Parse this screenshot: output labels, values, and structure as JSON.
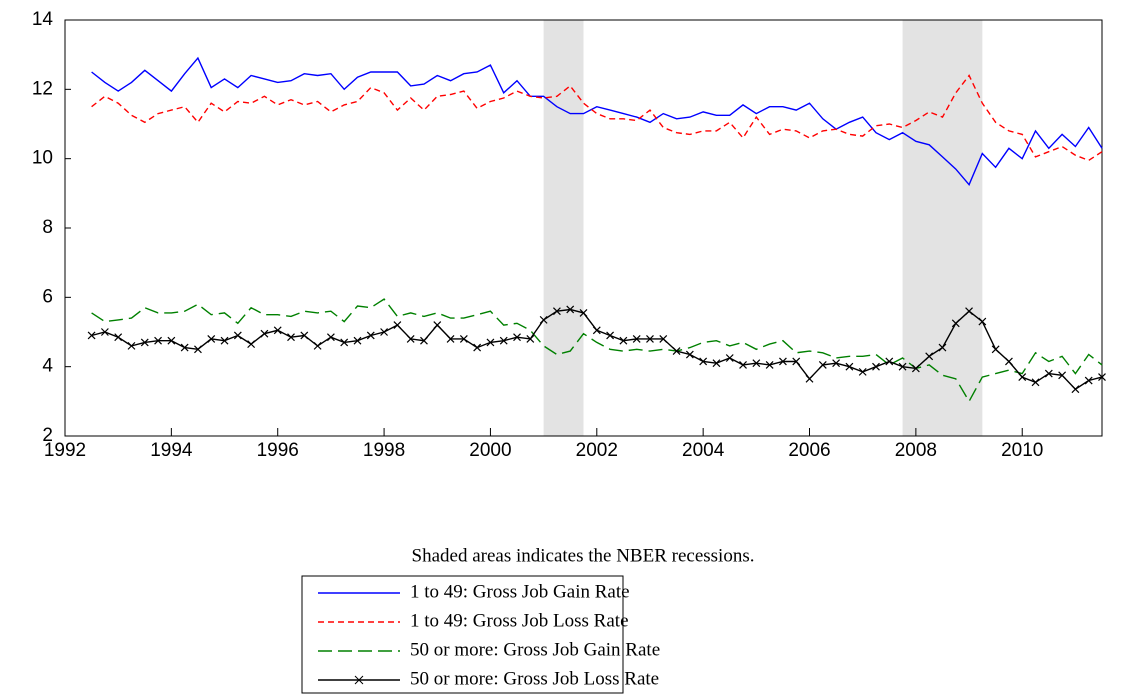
{
  "chart_data": {
    "type": "line",
    "note": "Shaded areas indicates the NBER recessions.",
    "x": [
      1992.5,
      1992.75,
      1993,
      1993.25,
      1993.5,
      1993.75,
      1994,
      1994.25,
      1994.5,
      1994.75,
      1995,
      1995.25,
      1995.5,
      1995.75,
      1996,
      1996.25,
      1996.5,
      1996.75,
      1997,
      1997.25,
      1997.5,
      1997.75,
      1998,
      1998.25,
      1998.5,
      1998.75,
      1999,
      1999.25,
      1999.5,
      1999.75,
      2000,
      2000.25,
      2000.5,
      2000.75,
      2001,
      2001.25,
      2001.5,
      2001.75,
      2002,
      2002.25,
      2002.5,
      2002.75,
      2003,
      2003.25,
      2003.5,
      2003.75,
      2004,
      2004.25,
      2004.5,
      2004.75,
      2005,
      2005.25,
      2005.5,
      2005.75,
      2006,
      2006.25,
      2006.5,
      2006.75,
      2007,
      2007.25,
      2007.5,
      2007.75,
      2008,
      2008.25,
      2008.5,
      2008.75,
      2009,
      2009.25,
      2009.5,
      2009.75,
      2010,
      2010.25,
      2010.5,
      2010.75,
      2011,
      2011.25,
      2011.5
    ],
    "series": [
      {
        "name": "1 to 49: Gross Job Gain Rate",
        "color": "#0000ff",
        "dash": "none",
        "values": [
          12.5,
          12.2,
          11.95,
          12.2,
          12.55,
          12.25,
          11.95,
          12.45,
          12.9,
          12.05,
          12.3,
          12.05,
          12.4,
          12.3,
          12.2,
          12.25,
          12.45,
          12.4,
          12.45,
          12.0,
          12.35,
          12.5,
          12.5,
          12.5,
          12.1,
          12.15,
          12.4,
          12.25,
          12.45,
          12.5,
          12.7,
          11.9,
          12.25,
          11.8,
          11.8,
          11.5,
          11.3,
          11.3,
          11.5,
          11.4,
          11.3,
          11.2,
          11.05,
          11.3,
          11.15,
          11.2,
          11.35,
          11.25,
          11.25,
          11.55,
          11.3,
          11.5,
          11.5,
          11.4,
          11.6,
          11.15,
          10.85,
          11.05,
          11.2,
          10.75,
          10.55,
          10.75,
          10.5,
          10.4,
          10.05,
          9.7,
          9.25,
          10.15,
          9.75,
          10.3,
          10.0,
          10.8,
          10.3,
          10.7,
          10.35,
          10.9,
          10.3
        ]
      },
      {
        "name": "1 to 49: Gross Job Loss Rate",
        "color": "#ff0000",
        "dash": "6 4",
        "values": [
          11.5,
          11.8,
          11.6,
          11.25,
          11.05,
          11.3,
          11.4,
          11.5,
          11.05,
          11.6,
          11.35,
          11.65,
          11.6,
          11.8,
          11.55,
          11.7,
          11.55,
          11.65,
          11.35,
          11.55,
          11.65,
          12.05,
          11.9,
          11.4,
          11.75,
          11.4,
          11.8,
          11.85,
          11.95,
          11.45,
          11.65,
          11.75,
          11.95,
          11.8,
          11.75,
          11.8,
          12.1,
          11.6,
          11.3,
          11.15,
          11.15,
          11.1,
          11.4,
          10.9,
          10.75,
          10.7,
          10.8,
          10.8,
          11.05,
          10.6,
          11.2,
          10.7,
          10.85,
          10.8,
          10.6,
          10.8,
          10.85,
          10.7,
          10.65,
          10.95,
          11.0,
          10.9,
          11.1,
          11.35,
          11.2,
          11.9,
          12.4,
          11.6,
          11.05,
          10.8,
          10.7,
          10.05,
          10.2,
          10.35,
          10.1,
          9.95,
          10.2
        ]
      },
      {
        "name": "50 or more: Gross Job Gain Rate",
        "color": "#008000",
        "dash": "14 6",
        "values": [
          5.55,
          5.3,
          5.35,
          5.4,
          5.7,
          5.55,
          5.55,
          5.6,
          5.8,
          5.5,
          5.55,
          5.25,
          5.7,
          5.5,
          5.5,
          5.45,
          5.6,
          5.55,
          5.6,
          5.3,
          5.75,
          5.7,
          5.95,
          5.45,
          5.55,
          5.45,
          5.55,
          5.4,
          5.4,
          5.5,
          5.6,
          5.2,
          5.25,
          5.05,
          4.6,
          4.35,
          4.45,
          4.95,
          4.7,
          4.5,
          4.45,
          4.5,
          4.45,
          4.5,
          4.45,
          4.55,
          4.7,
          4.75,
          4.6,
          4.7,
          4.5,
          4.65,
          4.75,
          4.4,
          4.45,
          4.4,
          4.25,
          4.3,
          4.3,
          4.35,
          4.05,
          4.25,
          3.95,
          4.05,
          3.75,
          3.65,
          3.0,
          3.7,
          3.8,
          3.9,
          3.8,
          4.4,
          4.15,
          4.3,
          3.8,
          4.35,
          4.05
        ]
      },
      {
        "name": "50 or more: Gross Job Loss Rate",
        "color": "#000000",
        "dash": "none",
        "marker": "x",
        "values": [
          4.9,
          5.0,
          4.85,
          4.6,
          4.7,
          4.75,
          4.75,
          4.55,
          4.5,
          4.8,
          4.75,
          4.9,
          4.65,
          4.95,
          5.05,
          4.85,
          4.9,
          4.6,
          4.85,
          4.7,
          4.75,
          4.9,
          5.0,
          5.2,
          4.8,
          4.75,
          5.2,
          4.8,
          4.8,
          4.55,
          4.7,
          4.75,
          4.85,
          4.8,
          5.35,
          5.6,
          5.65,
          5.55,
          5.05,
          4.9,
          4.75,
          4.8,
          4.8,
          4.8,
          4.45,
          4.35,
          4.15,
          4.1,
          4.25,
          4.05,
          4.1,
          4.05,
          4.15,
          4.15,
          3.65,
          4.05,
          4.1,
          4.0,
          3.85,
          4.0,
          4.15,
          4.0,
          3.95,
          4.3,
          4.55,
          5.25,
          5.6,
          5.3,
          4.5,
          4.15,
          3.7,
          3.55,
          3.8,
          3.75,
          3.35,
          3.6,
          3.7
        ]
      }
    ],
    "shaded": [
      [
        2001.0,
        2001.75
      ],
      [
        2007.75,
        2009.25
      ]
    ],
    "shade_color": "#e3e3e3",
    "xlim": [
      1992,
      2011.5
    ],
    "xticks": [
      1992,
      1994,
      1996,
      1998,
      2000,
      2002,
      2004,
      2006,
      2008,
      2010
    ],
    "ylim": [
      2,
      14
    ],
    "yticks": [
      2,
      4,
      6,
      8,
      10,
      12,
      14
    ],
    "grid": false
  }
}
